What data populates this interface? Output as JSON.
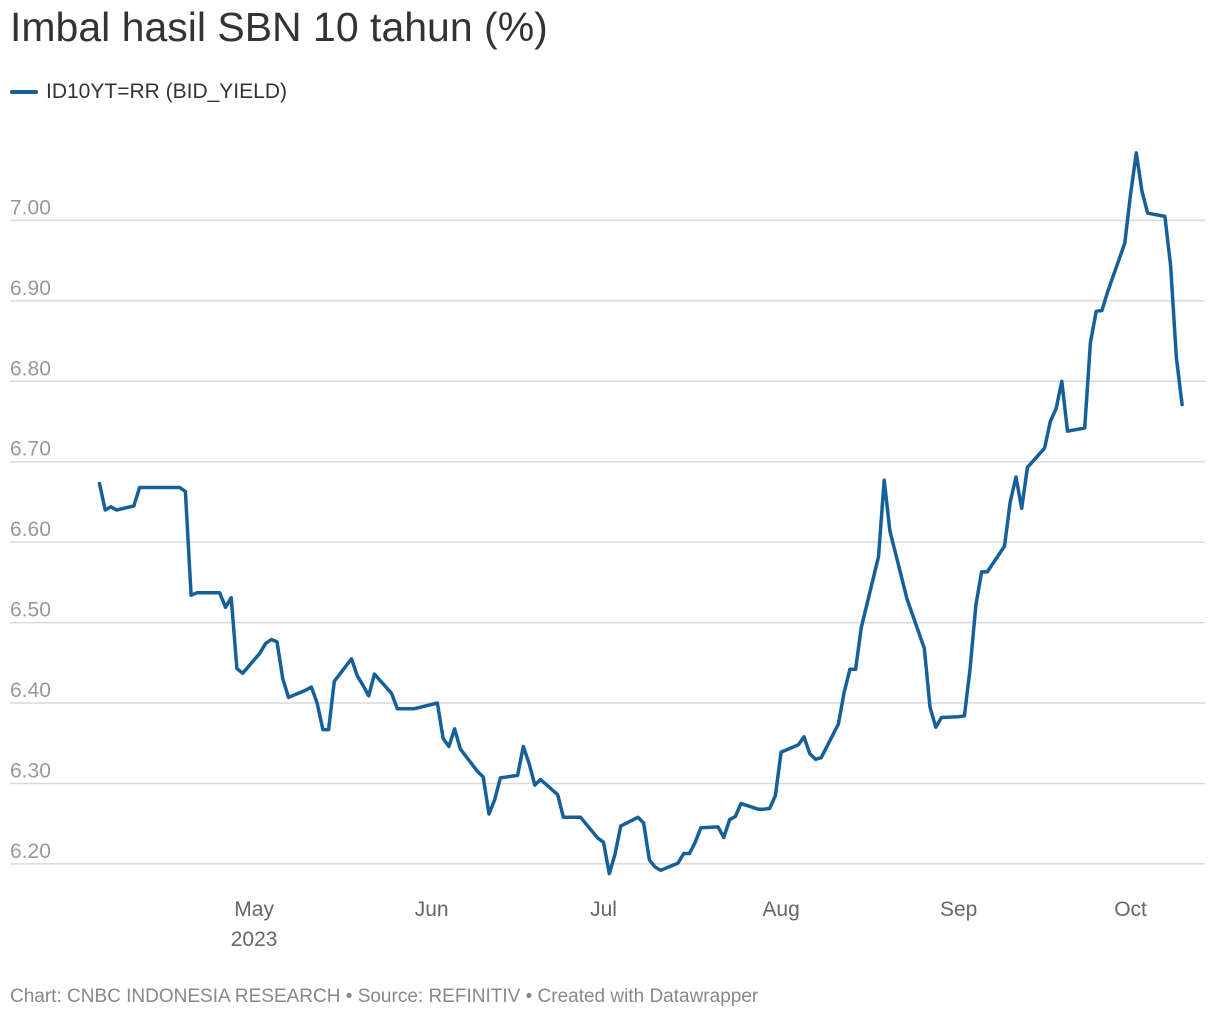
{
  "title": "Imbal hasil SBN 10 tahun (%)",
  "footer": {
    "credit": "Chart: CNBC INDONESIA RESEARCH",
    "source": "Source: REFINITIV",
    "created": "Created with Datawrapper",
    "separator": " • "
  },
  "colors": {
    "line": "#15609a",
    "grid": "#d9d9d9",
    "ytick": "#999999",
    "xtick": "#666666"
  },
  "chart_data": {
    "type": "line",
    "title": "Imbal hasil SBN 10 tahun (%)",
    "xlabel": "",
    "ylabel": "",
    "ylim": [
      6.18,
      7.1
    ],
    "xlim": [
      "2023-04-02",
      "2023-10-14"
    ],
    "grid": true,
    "legend_position": "top-left",
    "y_ticks": [
      {
        "value": 6.2,
        "label": "6.20"
      },
      {
        "value": 6.3,
        "label": "6.30"
      },
      {
        "value": 6.4,
        "label": "6.40"
      },
      {
        "value": 6.5,
        "label": "6.50"
      },
      {
        "value": 6.6,
        "label": "6.60"
      },
      {
        "value": 6.7,
        "label": "6.70"
      },
      {
        "value": 6.8,
        "label": "6.80"
      },
      {
        "value": 6.9,
        "label": "6.90"
      },
      {
        "value": 7.0,
        "label": "7.00"
      }
    ],
    "x_ticks": [
      {
        "date": "2023-05-01",
        "label": "May",
        "sublabel": "2023"
      },
      {
        "date": "2023-06-01",
        "label": "Jun",
        "sublabel": ""
      },
      {
        "date": "2023-07-01",
        "label": "Jul",
        "sublabel": ""
      },
      {
        "date": "2023-08-01",
        "label": "Aug",
        "sublabel": ""
      },
      {
        "date": "2023-09-01",
        "label": "Sep",
        "sublabel": ""
      },
      {
        "date": "2023-10-01",
        "label": "Oct",
        "sublabel": ""
      }
    ],
    "series": [
      {
        "name": "ID10YT=RR (BID_YIELD)",
        "points": [
          [
            "2023-04-04",
            6.673
          ],
          [
            "2023-04-05",
            6.64
          ],
          [
            "2023-04-06",
            6.644
          ],
          [
            "2023-04-07",
            6.64
          ],
          [
            "2023-04-10",
            6.645
          ],
          [
            "2023-04-11",
            6.668
          ],
          [
            "2023-04-12",
            6.668
          ],
          [
            "2023-04-13",
            6.668
          ],
          [
            "2023-04-14",
            6.668
          ],
          [
            "2023-04-17",
            6.668
          ],
          [
            "2023-04-18",
            6.668
          ],
          [
            "2023-04-19",
            6.663
          ],
          [
            "2023-04-20",
            6.534
          ],
          [
            "2023-04-21",
            6.537
          ],
          [
            "2023-04-24",
            6.537
          ],
          [
            "2023-04-25",
            6.537
          ],
          [
            "2023-04-26",
            6.519
          ],
          [
            "2023-04-27",
            6.531
          ],
          [
            "2023-04-28",
            6.443
          ],
          [
            "2023-04-29",
            6.437
          ],
          [
            "2023-05-02",
            6.462
          ],
          [
            "2023-05-03",
            6.474
          ],
          [
            "2023-05-04",
            6.479
          ],
          [
            "2023-05-05",
            6.476
          ],
          [
            "2023-05-06",
            6.43
          ],
          [
            "2023-05-07",
            6.407
          ],
          [
            "2023-05-10",
            6.416
          ],
          [
            "2023-05-11",
            6.42
          ],
          [
            "2023-05-12",
            6.4
          ],
          [
            "2023-05-13",
            6.367
          ],
          [
            "2023-05-14",
            6.367
          ],
          [
            "2023-05-15",
            6.427
          ],
          [
            "2023-05-18",
            6.455
          ],
          [
            "2023-05-19",
            6.434
          ],
          [
            "2023-05-20",
            6.422
          ],
          [
            "2023-05-21",
            6.409
          ],
          [
            "2023-05-22",
            6.436
          ],
          [
            "2023-05-25",
            6.412
          ],
          [
            "2023-05-26",
            6.393
          ],
          [
            "2023-05-27",
            6.393
          ],
          [
            "2023-05-29",
            6.393
          ],
          [
            "2023-06-02",
            6.4
          ],
          [
            "2023-06-03",
            6.356
          ],
          [
            "2023-06-04",
            6.346
          ],
          [
            "2023-06-05",
            6.368
          ],
          [
            "2023-06-06",
            6.343
          ],
          [
            "2023-06-09",
            6.315
          ],
          [
            "2023-06-10",
            6.308
          ],
          [
            "2023-06-11",
            6.262
          ],
          [
            "2023-06-12",
            6.28
          ],
          [
            "2023-06-13",
            6.307
          ],
          [
            "2023-06-16",
            6.31
          ],
          [
            "2023-06-17",
            6.346
          ],
          [
            "2023-06-18",
            6.325
          ],
          [
            "2023-06-19",
            6.298
          ],
          [
            "2023-06-20",
            6.305
          ],
          [
            "2023-06-23",
            6.286
          ],
          [
            "2023-06-24",
            6.258
          ],
          [
            "2023-06-25",
            6.258
          ],
          [
            "2023-06-27",
            6.258
          ],
          [
            "2023-06-30",
            6.232
          ],
          [
            "2023-07-01",
            6.227
          ],
          [
            "2023-07-02",
            6.188
          ],
          [
            "2023-07-03",
            6.212
          ],
          [
            "2023-07-04",
            6.247
          ],
          [
            "2023-07-07",
            6.258
          ],
          [
            "2023-07-08",
            6.251
          ],
          [
            "2023-07-09",
            6.205
          ],
          [
            "2023-07-10",
            6.196
          ],
          [
            "2023-07-11",
            6.192
          ],
          [
            "2023-07-14",
            6.201
          ],
          [
            "2023-07-15",
            6.213
          ],
          [
            "2023-07-16",
            6.213
          ],
          [
            "2023-07-17",
            6.227
          ],
          [
            "2023-07-18",
            6.245
          ],
          [
            "2023-07-21",
            6.246
          ],
          [
            "2023-07-22",
            6.233
          ],
          [
            "2023-07-23",
            6.255
          ],
          [
            "2023-07-24",
            6.259
          ],
          [
            "2023-07-25",
            6.275
          ],
          [
            "2023-07-28",
            6.268
          ],
          [
            "2023-07-29",
            6.268
          ],
          [
            "2023-07-30",
            6.269
          ],
          [
            "2023-07-31",
            6.285
          ],
          [
            "2023-08-01",
            6.339
          ],
          [
            "2023-08-04",
            6.348
          ],
          [
            "2023-08-05",
            6.358
          ],
          [
            "2023-08-06",
            6.337
          ],
          [
            "2023-08-07",
            6.33
          ],
          [
            "2023-08-08",
            6.332
          ],
          [
            "2023-08-11",
            6.374
          ],
          [
            "2023-08-12",
            6.413
          ],
          [
            "2023-08-13",
            6.442
          ],
          [
            "2023-08-14",
            6.442
          ],
          [
            "2023-08-15",
            6.494
          ],
          [
            "2023-08-18",
            6.582
          ],
          [
            "2023-08-19",
            6.677
          ],
          [
            "2023-08-20",
            6.614
          ],
          [
            "2023-08-23",
            6.529
          ],
          [
            "2023-08-26",
            6.468
          ],
          [
            "2023-08-27",
            6.395
          ],
          [
            "2023-08-28",
            6.37
          ],
          [
            "2023-08-29",
            6.382
          ],
          [
            "2023-09-01",
            6.383
          ],
          [
            "2023-09-02",
            6.384
          ],
          [
            "2023-09-03",
            6.443
          ],
          [
            "2023-09-04",
            6.522
          ],
          [
            "2023-09-05",
            6.563
          ],
          [
            "2023-09-06",
            6.563
          ],
          [
            "2023-09-09",
            6.595
          ],
          [
            "2023-09-10",
            6.65
          ],
          [
            "2023-09-11",
            6.681
          ],
          [
            "2023-09-12",
            6.642
          ],
          [
            "2023-09-13",
            6.693
          ],
          [
            "2023-09-16",
            6.717
          ],
          [
            "2023-09-17",
            6.75
          ],
          [
            "2023-09-18",
            6.766
          ],
          [
            "2023-09-19",
            6.8
          ],
          [
            "2023-09-20",
            6.738
          ],
          [
            "2023-09-23",
            6.742
          ],
          [
            "2023-09-24",
            6.848
          ],
          [
            "2023-09-25",
            6.887
          ],
          [
            "2023-09-26",
            6.888
          ],
          [
            "2023-09-27",
            6.911
          ],
          [
            "2023-09-30",
            6.972
          ],
          [
            "2023-10-01",
            7.032
          ],
          [
            "2023-10-02",
            7.084
          ],
          [
            "2023-10-03",
            7.036
          ],
          [
            "2023-10-04",
            7.009
          ],
          [
            "2023-10-07",
            7.005
          ],
          [
            "2023-10-08",
            6.944
          ],
          [
            "2023-10-09",
            6.829
          ],
          [
            "2023-10-10",
            6.771
          ]
        ]
      }
    ]
  }
}
